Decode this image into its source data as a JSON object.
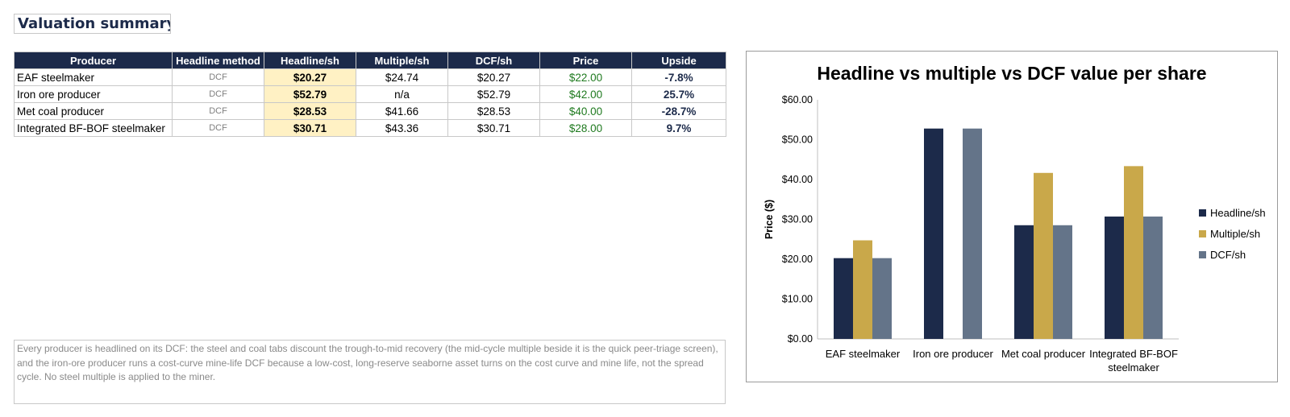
{
  "sheet": {
    "title": "Valuation summary",
    "columns": [
      "Producer",
      "Headline method",
      "Headline/sh",
      "Multiple/sh",
      "DCF/sh",
      "Price",
      "Upside"
    ],
    "rows": [
      {
        "producer": "EAF steelmaker",
        "method": "DCF",
        "headline": "$20.27",
        "multiple": "$24.74",
        "dcf": "$20.27",
        "price": "$22.00",
        "upside": "-7.8%"
      },
      {
        "producer": "Iron ore producer",
        "method": "DCF",
        "headline": "$52.79",
        "multiple": "n/a",
        "dcf": "$52.79",
        "price": "$42.00",
        "upside": "25.7%"
      },
      {
        "producer": "Met coal producer",
        "method": "DCF",
        "headline": "$28.53",
        "multiple": "$41.66",
        "dcf": "$28.53",
        "price": "$40.00",
        "upside": "-28.7%"
      },
      {
        "producer": "Integrated BF-BOF steelmaker",
        "method": "DCF",
        "headline": "$30.71",
        "multiple": "$43.36",
        "dcf": "$30.71",
        "price": "$28.00",
        "upside": "9.7%"
      }
    ],
    "note": "Every producer is headlined on its DCF: the steel and coal tabs discount the trough-to-mid recovery (the mid-cycle multiple beside it is the quick peer-triage screen), and the iron-ore producer runs a cost-curve mine-life DCF because a low-cost, long-reserve seaborne asset turns on the cost curve and mine life, not the spread cycle. No steel multiple is applied to the miner."
  },
  "chart_data": {
    "type": "bar",
    "title": "Headline vs multiple vs DCF value per share",
    "xlabel": "",
    "ylabel": "Price ($)",
    "categories": [
      "EAF steelmaker",
      "Iron ore producer",
      "Met coal producer",
      "Integrated BF-BOF steelmaker"
    ],
    "series": [
      {
        "name": "Headline/sh",
        "color": "#1c2a4a",
        "values": [
          20.27,
          52.79,
          28.53,
          30.71
        ]
      },
      {
        "name": "Multiple/sh",
        "color": "#c9a84a",
        "values": [
          24.74,
          null,
          41.66,
          43.36
        ]
      },
      {
        "name": "DCF/sh",
        "color": "#647489",
        "values": [
          20.27,
          52.79,
          28.53,
          30.71
        ]
      }
    ],
    "ylim": [
      0,
      60
    ],
    "y_ticks": [
      "$0.00",
      "$10.00",
      "$20.00",
      "$30.00",
      "$40.00",
      "$50.00",
      "$60.00"
    ],
    "grid": false,
    "legend_position": "right"
  }
}
